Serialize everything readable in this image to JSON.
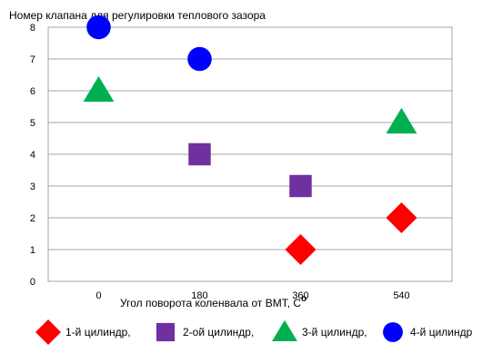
{
  "chart_data": {
    "type": "scatter",
    "title": "Номер клапана для регулировки теплового зазора",
    "xlabel": "Угол поворота коленвала от ВМТ, С",
    "xlabel_superscript": "о",
    "ylabel": "",
    "categories": [
      "0",
      "180",
      "360",
      "540"
    ],
    "ylim": [
      0,
      8
    ],
    "yticks": [
      "0",
      "1",
      "2",
      "3",
      "4",
      "5",
      "6",
      "7",
      "8"
    ],
    "grid": true,
    "legend_position": "bottom",
    "series": [
      {
        "name": "1-й цилиндр,",
        "marker": "diamond",
        "color": "#ff0000",
        "points": [
          {
            "x": "360",
            "y": 1
          },
          {
            "x": "540",
            "y": 2
          }
        ]
      },
      {
        "name": "2-ой цилиндр,",
        "marker": "square",
        "color": "#7030a0",
        "points": [
          {
            "x": "180",
            "y": 4
          },
          {
            "x": "360",
            "y": 3
          }
        ]
      },
      {
        "name": "3-й цилиндр,",
        "marker": "triangle",
        "color": "#00b050",
        "points": [
          {
            "x": "0",
            "y": 6
          },
          {
            "x": "540",
            "y": 5
          }
        ]
      },
      {
        "name": "4-й цилиндр",
        "marker": "circle",
        "color": "#0000ff",
        "points": [
          {
            "x": "0",
            "y": 8
          },
          {
            "x": "180",
            "y": 7
          }
        ]
      }
    ]
  }
}
